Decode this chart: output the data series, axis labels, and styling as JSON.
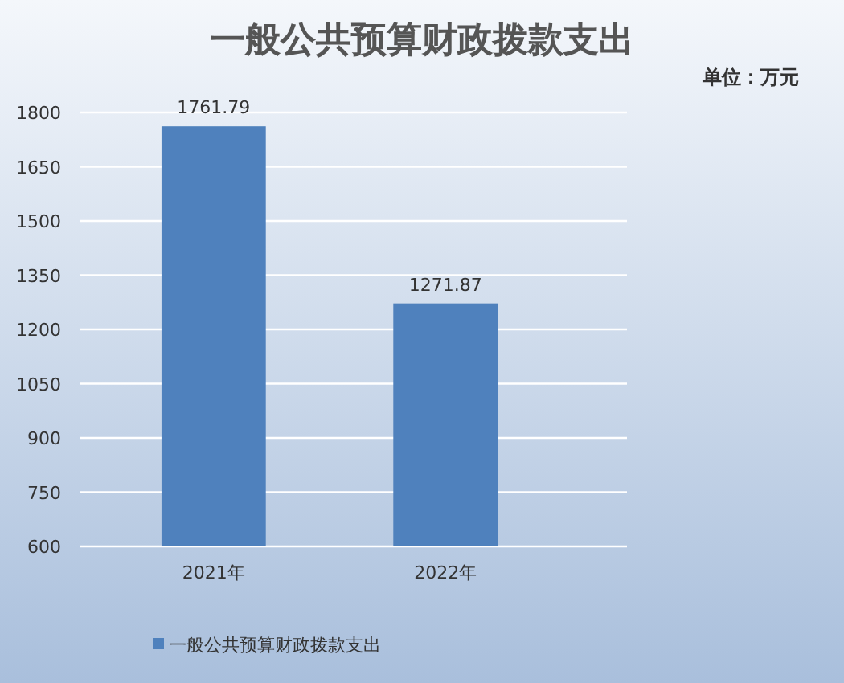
{
  "chart_data": {
    "type": "bar",
    "title": "一般公共预算财政拨款支出",
    "annotations": [
      "单位：万元"
    ],
    "categories": [
      "2021年",
      "2022年"
    ],
    "series": [
      {
        "name": "一般公共预算财政拨款支出",
        "color": "#4f81bd",
        "values": [
          1761.79,
          1271.87
        ]
      }
    ],
    "ylim": [
      600,
      1800
    ],
    "yticks": [
      600,
      750,
      900,
      1050,
      1200,
      1350,
      1500,
      1650,
      1800
    ],
    "grid": "y",
    "legend": "bottom left",
    "data_labels": true
  }
}
